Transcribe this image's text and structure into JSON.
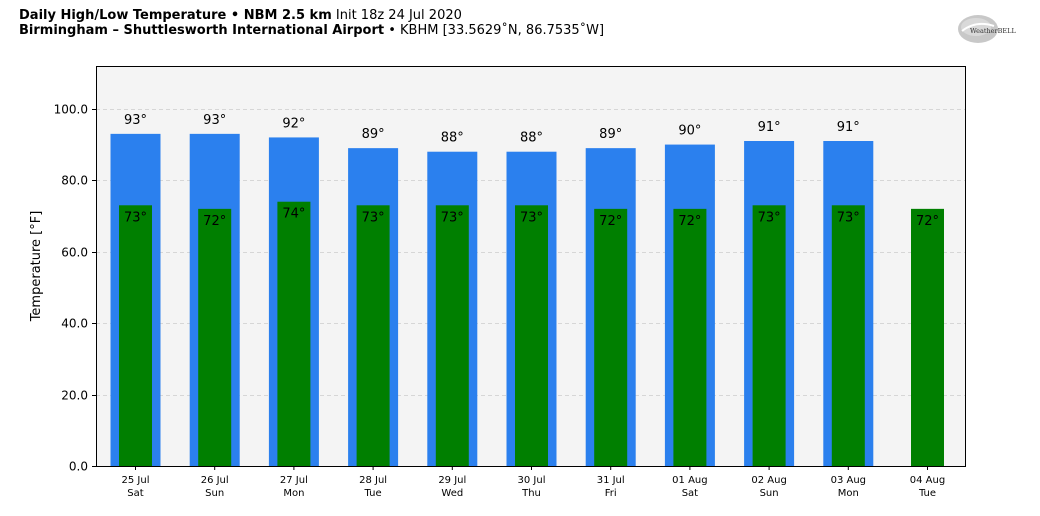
{
  "header": {
    "title_bold": "Daily High/Low Temperature • NBM 2.5 km",
    "title_light": "Init 18z 24 Jul 2020",
    "location_bold": "Birmingham – Shuttlesworth International Airport",
    "location_light": "• KBHM [33.5629˚N, 86.7535˚W]"
  },
  "logo": {
    "text": "WeatherBELL"
  },
  "colors": {
    "high_bar": "#2b80ee",
    "low_bar": "#007f00",
    "plot_bg": "#f4f4f4",
    "grid": "#cccccc"
  },
  "chart_data": {
    "type": "bar",
    "ylabel": "Temperature [°F]",
    "ylim": [
      0,
      112
    ],
    "yticks": [
      "0.0",
      "20.0",
      "40.0",
      "60.0",
      "80.0",
      "100.0"
    ],
    "ytick_values": [
      0,
      20,
      40,
      60,
      80,
      100
    ],
    "grid": true,
    "categories": [
      [
        "25 Jul",
        "Sat"
      ],
      [
        "26 Jul",
        "Sun"
      ],
      [
        "27 Jul",
        "Mon"
      ],
      [
        "28 Jul",
        "Tue"
      ],
      [
        "29 Jul",
        "Wed"
      ],
      [
        "30 Jul",
        "Thu"
      ],
      [
        "31 Jul",
        "Fri"
      ],
      [
        "01 Aug",
        "Sat"
      ],
      [
        "02 Aug",
        "Sun"
      ],
      [
        "03 Aug",
        "Mon"
      ],
      [
        "04 Aug",
        "Tue"
      ]
    ],
    "series": [
      {
        "values": [
          93,
          93,
          92,
          89,
          88,
          88,
          89,
          90,
          91,
          91,
          null
        ],
        "labels": [
          "93°",
          "93°",
          "92°",
          "89°",
          "88°",
          "88°",
          "89°",
          "90°",
          "91°",
          "91°",
          ""
        ]
      },
      {
        "values": [
          73,
          72,
          74,
          73,
          73,
          73,
          72,
          72,
          73,
          73,
          72
        ],
        "labels": [
          "73°",
          "72°",
          "74°",
          "73°",
          "73°",
          "73°",
          "72°",
          "72°",
          "73°",
          "73°",
          "72°"
        ]
      }
    ]
  }
}
